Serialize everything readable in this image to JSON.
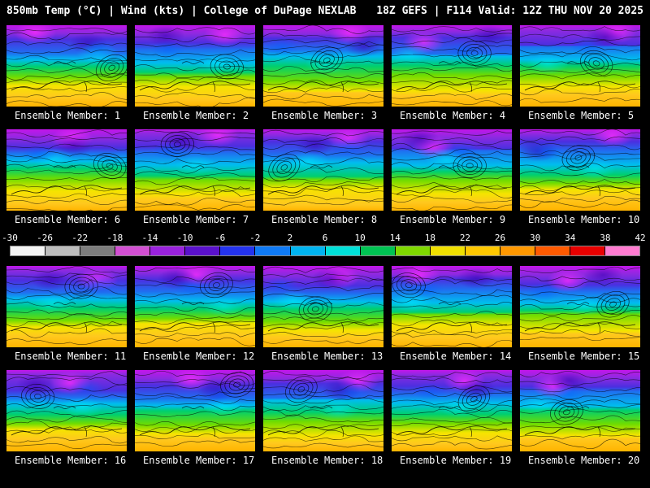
{
  "header": {
    "left": "850mb Temp (°C) | Wind (kts) | College of DuPage NEXLAB",
    "right": "18Z GEFS | F114 Valid: 12Z THU NOV 20 2025"
  },
  "members": [
    {
      "label": "Ensemble Member: 1"
    },
    {
      "label": "Ensemble Member: 2"
    },
    {
      "label": "Ensemble Member: 3"
    },
    {
      "label": "Ensemble Member: 4"
    },
    {
      "label": "Ensemble Member: 5"
    },
    {
      "label": "Ensemble Member: 6"
    },
    {
      "label": "Ensemble Member: 7"
    },
    {
      "label": "Ensemble Member: 8"
    },
    {
      "label": "Ensemble Member: 9"
    },
    {
      "label": "Ensemble Member: 10"
    },
    {
      "label": "Ensemble Member: 11"
    },
    {
      "label": "Ensemble Member: 12"
    },
    {
      "label": "Ensemble Member: 13"
    },
    {
      "label": "Ensemble Member: 14"
    },
    {
      "label": "Ensemble Member: 15"
    },
    {
      "label": "Ensemble Member: 16"
    },
    {
      "label": "Ensemble Member: 17"
    },
    {
      "label": "Ensemble Member: 18"
    },
    {
      "label": "Ensemble Member: 19"
    },
    {
      "label": "Ensemble Member: 20"
    }
  ],
  "colorbar": {
    "unit": "°C",
    "ticks": [
      "-30",
      "-26",
      "-22",
      "-18",
      "-14",
      "-10",
      "-6",
      "-2",
      "2",
      "6",
      "10",
      "14",
      "18",
      "22",
      "26",
      "30",
      "34",
      "38",
      "42"
    ],
    "segment_colors": [
      "#f4f4f4",
      "#bdbdbd",
      "#7d7d7d",
      "#d24fd2",
      "#9a22dd",
      "#5a11cc",
      "#2433ee",
      "#0f7af5",
      "#00b4f0",
      "#00e0d8",
      "#00c353",
      "#7fd800",
      "#f0e000",
      "#ffc800",
      "#ff9800",
      "#ff5a00",
      "#e80000",
      "#ff7bd0"
    ]
  }
}
